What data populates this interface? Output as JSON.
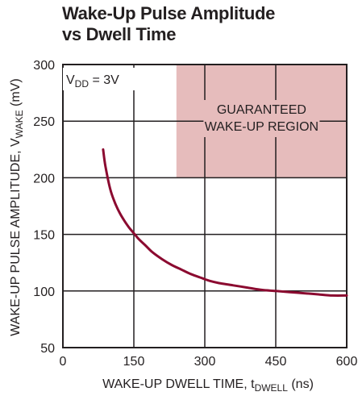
{
  "chart_data": {
    "type": "line",
    "title_lines": [
      "Wake-Up Pulse Amplitude",
      "vs Dwell Time"
    ],
    "xlabel": {
      "main": "WAKE-UP DWELL TIME, t",
      "sub": "DWELL",
      "unit": " (ns)"
    },
    "ylabel": {
      "main": "WAKE-UP PULSE AMPLITUDE, V",
      "sub": "WAKE",
      "unit": " (mV)"
    },
    "xlim": [
      0,
      600
    ],
    "ylim": [
      50,
      300
    ],
    "x_ticks": [
      0,
      150,
      300,
      450,
      600
    ],
    "x_tick_labels": [
      "0",
      "150",
      "300",
      "450",
      "600"
    ],
    "y_ticks": [
      50,
      100,
      150,
      200,
      250,
      300
    ],
    "y_tick_labels": [
      "50",
      "100",
      "150",
      "200",
      "250",
      "300"
    ],
    "grid": true,
    "legend": null,
    "region": {
      "label_lines": [
        "GUARANTEED",
        "WAKE-UP REGION"
      ],
      "x_range": [
        240,
        600
      ],
      "y_range": [
        200,
        300
      ],
      "color": "#e6bcbc"
    },
    "condition": {
      "main": "V",
      "sub": "DD",
      "rest": " = 3V"
    },
    "series": [
      {
        "color": "#8b0a30",
        "x": [
          85,
          90,
          100,
          110,
          120,
          130,
          140,
          150,
          160,
          175,
          190,
          210,
          230,
          250,
          270,
          290,
          310,
          330,
          360,
          390,
          420,
          450,
          480,
          510,
          540,
          570,
          600
        ],
        "y": [
          225,
          210,
          190,
          178,
          169,
          162,
          156,
          151,
          146,
          140,
          134,
          128,
          123,
          119,
          115,
          112,
          109,
          107,
          105,
          103,
          101,
          100,
          99,
          98,
          97,
          96,
          96
        ]
      }
    ]
  }
}
